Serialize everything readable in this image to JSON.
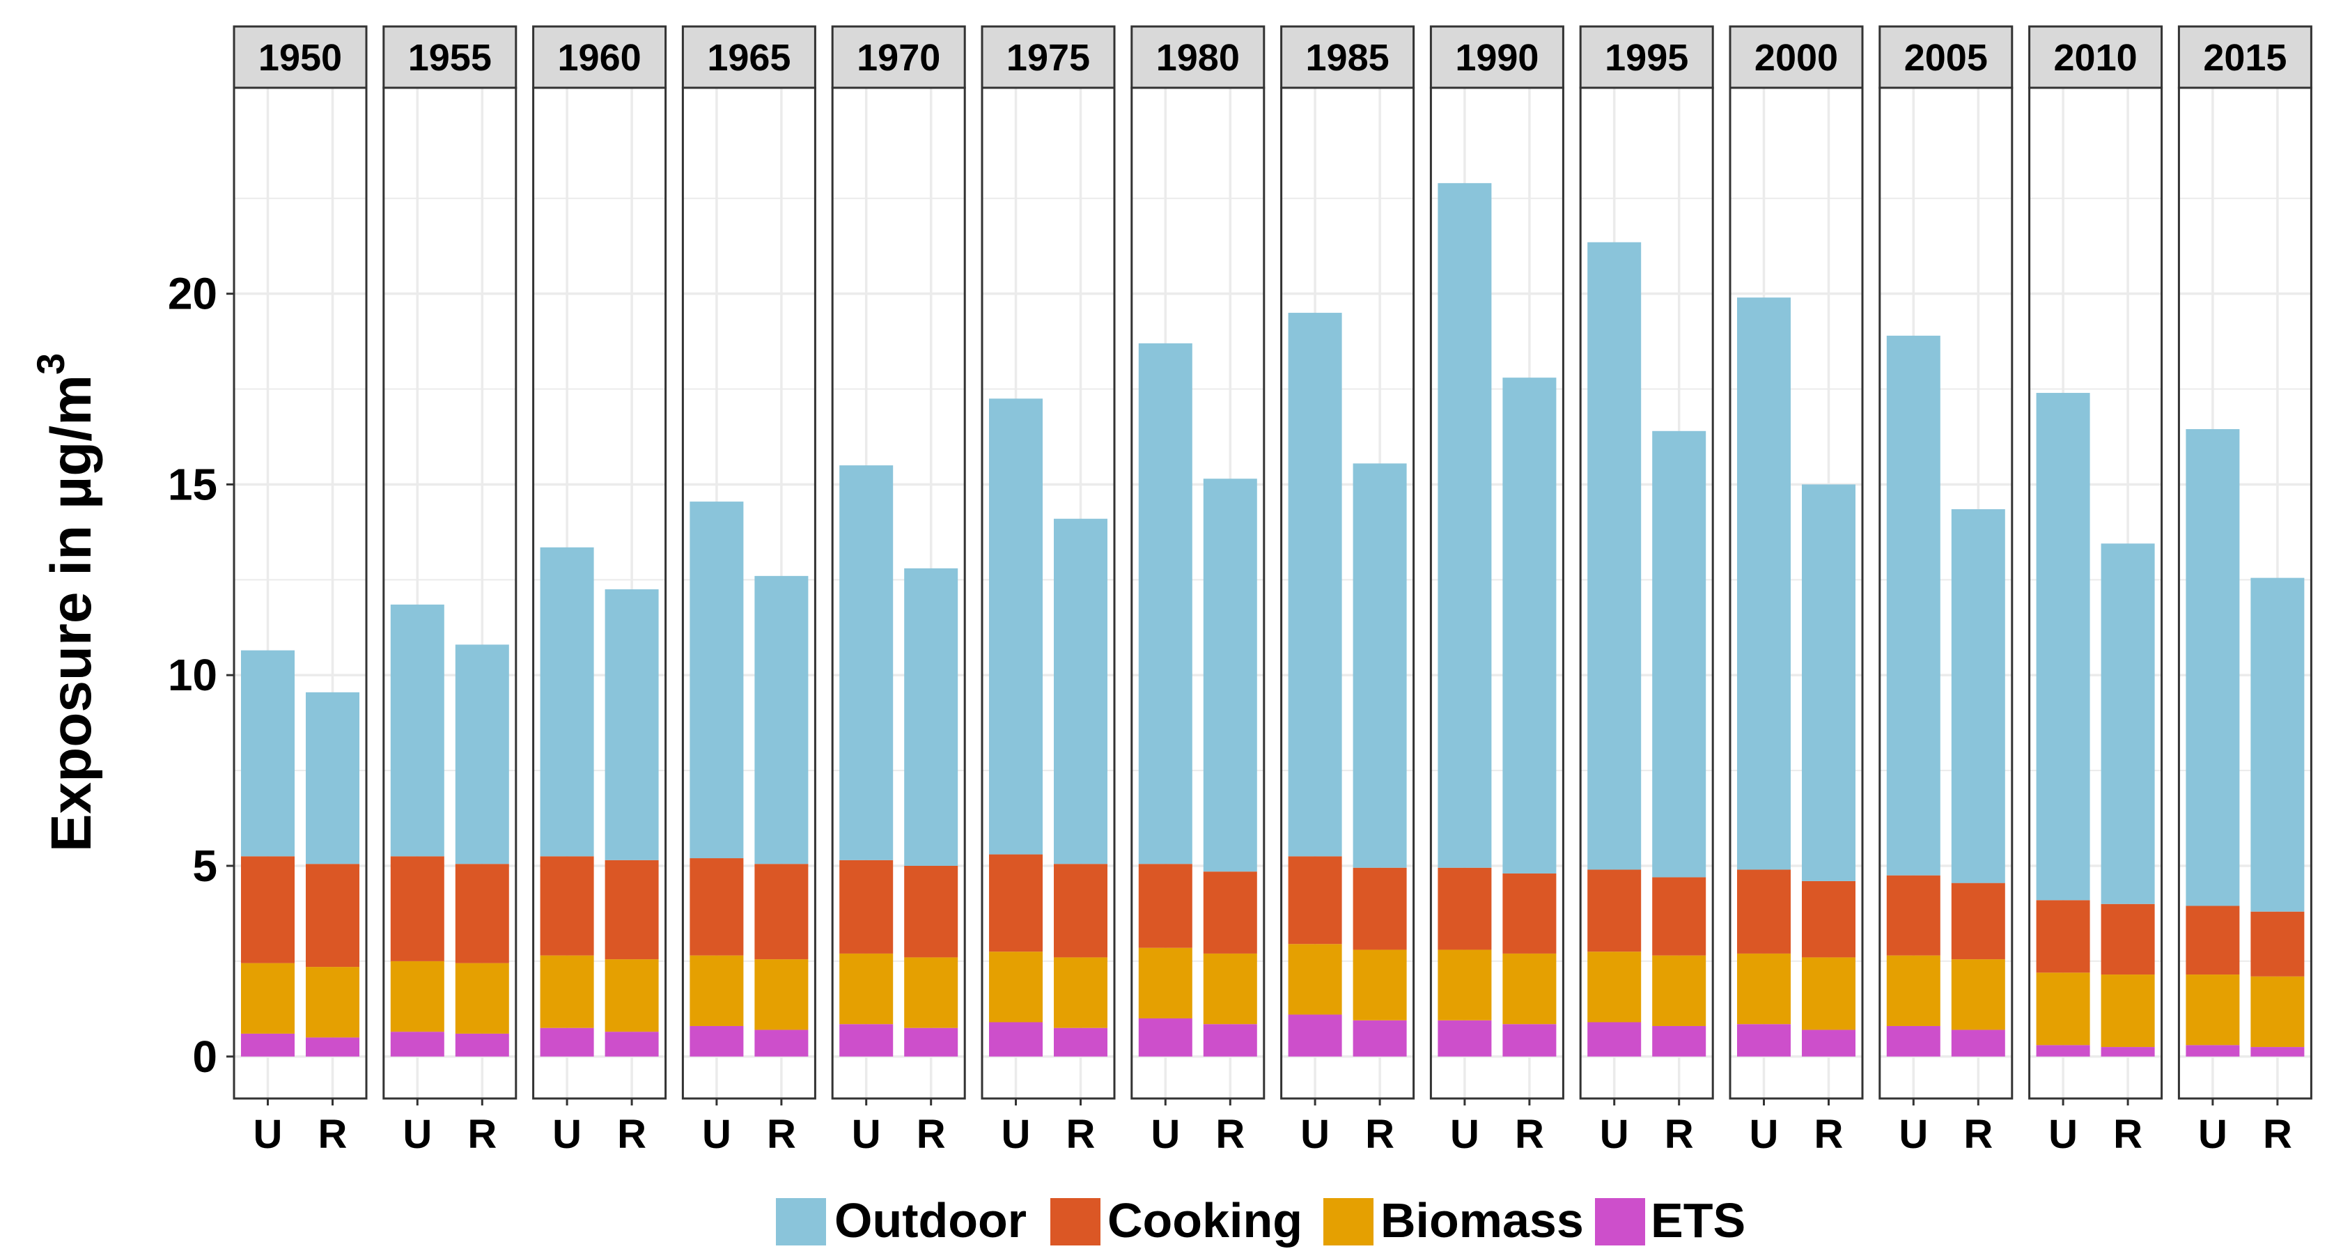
{
  "chart_data": {
    "type": "bar",
    "stacked": true,
    "facet_by": "year",
    "ylabel": "Exposure in µg/m",
    "ylabel_superscript": "3",
    "ylim": [
      -1.1,
      25.4
    ],
    "yticks": [
      "0",
      "5",
      "10",
      "15",
      "20"
    ],
    "ytick_values": [
      0,
      5,
      10,
      15,
      20
    ],
    "categories": [
      "U",
      "R"
    ],
    "grid": true,
    "legend_position": "bottom",
    "colors": {
      "Outdoor": "#8ac4da",
      "Cooking": "#db5725",
      "Biomass": "#e5a001",
      "ETS": "#cd4fcb",
      "strip_fill": "#d9d9d9",
      "grid": "#ebebeb",
      "border": "#333333"
    },
    "series_order": [
      "ETS",
      "Biomass",
      "Cooking",
      "Outdoor"
    ],
    "legend": [
      {
        "name": "Outdoor",
        "label": "Outdoor"
      },
      {
        "name": "Cooking",
        "label": "Cooking"
      },
      {
        "name": "Biomass",
        "label": "Biomass"
      },
      {
        "name": "ETS",
        "label": "ETS"
      }
    ],
    "panels": [
      {
        "year": "1950",
        "bars": [
          {
            "category": "U",
            "ETS": 0.6,
            "Biomass": 1.85,
            "Cooking": 2.8,
            "Outdoor": 5.4
          },
          {
            "category": "R",
            "ETS": 0.5,
            "Biomass": 1.85,
            "Cooking": 2.7,
            "Outdoor": 4.5
          }
        ]
      },
      {
        "year": "1955",
        "bars": [
          {
            "category": "U",
            "ETS": 0.65,
            "Biomass": 1.85,
            "Cooking": 2.75,
            "Outdoor": 6.6
          },
          {
            "category": "R",
            "ETS": 0.6,
            "Biomass": 1.85,
            "Cooking": 2.6,
            "Outdoor": 5.75
          }
        ]
      },
      {
        "year": "1960",
        "bars": [
          {
            "category": "U",
            "ETS": 0.75,
            "Biomass": 1.9,
            "Cooking": 2.6,
            "Outdoor": 8.1
          },
          {
            "category": "R",
            "ETS": 0.65,
            "Biomass": 1.9,
            "Cooking": 2.6,
            "Outdoor": 7.1
          }
        ]
      },
      {
        "year": "1965",
        "bars": [
          {
            "category": "U",
            "ETS": 0.8,
            "Biomass": 1.85,
            "Cooking": 2.55,
            "Outdoor": 9.35
          },
          {
            "category": "R",
            "ETS": 0.7,
            "Biomass": 1.85,
            "Cooking": 2.5,
            "Outdoor": 7.55
          }
        ]
      },
      {
        "year": "1970",
        "bars": [
          {
            "category": "U",
            "ETS": 0.85,
            "Biomass": 1.85,
            "Cooking": 2.45,
            "Outdoor": 10.35
          },
          {
            "category": "R",
            "ETS": 0.75,
            "Biomass": 1.85,
            "Cooking": 2.4,
            "Outdoor": 7.8
          }
        ]
      },
      {
        "year": "1975",
        "bars": [
          {
            "category": "U",
            "ETS": 0.9,
            "Biomass": 1.85,
            "Cooking": 2.55,
            "Outdoor": 11.95
          },
          {
            "category": "R",
            "ETS": 0.75,
            "Biomass": 1.85,
            "Cooking": 2.45,
            "Outdoor": 9.05
          }
        ]
      },
      {
        "year": "1980",
        "bars": [
          {
            "category": "U",
            "ETS": 1.0,
            "Biomass": 1.85,
            "Cooking": 2.2,
            "Outdoor": 13.65
          },
          {
            "category": "R",
            "ETS": 0.85,
            "Biomass": 1.85,
            "Cooking": 2.15,
            "Outdoor": 10.3
          }
        ]
      },
      {
        "year": "1985",
        "bars": [
          {
            "category": "U",
            "ETS": 1.1,
            "Biomass": 1.85,
            "Cooking": 2.3,
            "Outdoor": 14.25
          },
          {
            "category": "R",
            "ETS": 0.95,
            "Biomass": 1.85,
            "Cooking": 2.15,
            "Outdoor": 10.6
          }
        ]
      },
      {
        "year": "1990",
        "bars": [
          {
            "category": "U",
            "ETS": 0.95,
            "Biomass": 1.85,
            "Cooking": 2.15,
            "Outdoor": 17.95
          },
          {
            "category": "R",
            "ETS": 0.85,
            "Biomass": 1.85,
            "Cooking": 2.1,
            "Outdoor": 13.0
          }
        ]
      },
      {
        "year": "1995",
        "bars": [
          {
            "category": "U",
            "ETS": 0.9,
            "Biomass": 1.85,
            "Cooking": 2.15,
            "Outdoor": 16.45
          },
          {
            "category": "R",
            "ETS": 0.8,
            "Biomass": 1.85,
            "Cooking": 2.05,
            "Outdoor": 11.7
          }
        ]
      },
      {
        "year": "2000",
        "bars": [
          {
            "category": "U",
            "ETS": 0.85,
            "Biomass": 1.85,
            "Cooking": 2.2,
            "Outdoor": 15.0
          },
          {
            "category": "R",
            "ETS": 0.7,
            "Biomass": 1.9,
            "Cooking": 2.0,
            "Outdoor": 10.4
          }
        ]
      },
      {
        "year": "2005",
        "bars": [
          {
            "category": "U",
            "ETS": 0.8,
            "Biomass": 1.85,
            "Cooking": 2.1,
            "Outdoor": 14.15
          },
          {
            "category": "R",
            "ETS": 0.7,
            "Biomass": 1.85,
            "Cooking": 2.0,
            "Outdoor": 9.8
          }
        ]
      },
      {
        "year": "2010",
        "bars": [
          {
            "category": "U",
            "ETS": 0.3,
            "Biomass": 1.9,
            "Cooking": 1.9,
            "Outdoor": 13.3
          },
          {
            "category": "R",
            "ETS": 0.25,
            "Biomass": 1.9,
            "Cooking": 1.85,
            "Outdoor": 9.45
          }
        ]
      },
      {
        "year": "2015",
        "bars": [
          {
            "category": "U",
            "ETS": 0.3,
            "Biomass": 1.85,
            "Cooking": 1.8,
            "Outdoor": 12.5
          },
          {
            "category": "R",
            "ETS": 0.25,
            "Biomass": 1.85,
            "Cooking": 1.7,
            "Outdoor": 8.75
          }
        ]
      }
    ]
  }
}
